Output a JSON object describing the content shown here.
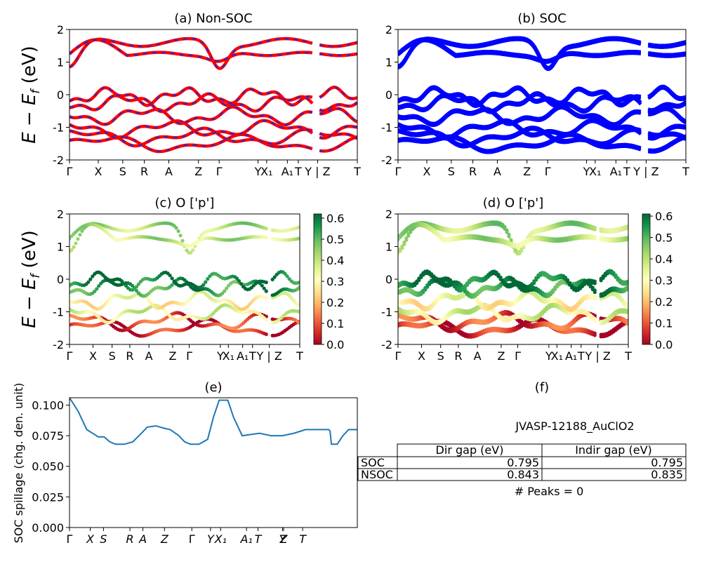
{
  "colors": {
    "nsoc_line": "#ff0000",
    "nsoc_dash": "#1f2bd6",
    "soc_line": "#0000ff",
    "spillage_line": "#1f77b4",
    "cmap": [
      "#a50026",
      "#d73027",
      "#f46d43",
      "#fdae61",
      "#fee08b",
      "#ffffbf",
      "#d9ef8b",
      "#a6d96a",
      "#66bd63",
      "#1a9850",
      "#006837"
    ]
  },
  "panels": {
    "a": {
      "title": "(a) Non-SOC"
    },
    "b": {
      "title": "(b) SOC"
    },
    "c": {
      "title": "(c)  O ['p']",
      "cbar_max": 0.62
    },
    "d": {
      "title": "(d) O ['p']",
      "cbar_max": 0.61
    },
    "e": {
      "title": "(e)"
    },
    "f": {
      "title": "(f)"
    }
  },
  "ylabels": {
    "energy": "E − E_f (eV)",
    "spillage": "SOC spillage (chg. den. unit)"
  },
  "band_ticks_top": [
    "Γ",
    "X",
    "S",
    "R",
    "A",
    "Z",
    "Γ",
    "Y",
    "X₁",
    "A₁",
    "T",
    "Y | Z",
    "T"
  ],
  "band_ticks_mid": [
    "Γ",
    "X",
    "S",
    "R",
    "A",
    "Z",
    "Γ",
    "Y",
    "X₁",
    "A₁",
    "T",
    "Y | Z",
    "T"
  ],
  "spill_ticks": [
    "Γ",
    "X",
    "S",
    "R",
    "A",
    "Z",
    "Γ",
    "Y",
    "X₁",
    "A₁",
    "T",
    "Y",
    "Z",
    "T"
  ],
  "table": {
    "material": "JVASP-12188_AuClO2",
    "headers": [
      "",
      "Dir gap (eV)",
      "Indir gap (eV)"
    ],
    "rows": [
      {
        "label": "SOC",
        "dir": "0.795",
        "indir": "0.795"
      },
      {
        "label": "NSOC",
        "dir": "0.843",
        "indir": "0.835"
      }
    ],
    "peaks": "# Peaks = 0"
  },
  "chart_data": [
    {
      "type": "line",
      "panel": "a",
      "title": "(a) Non-SOC",
      "ylabel": "E − E_f (eV)",
      "ylim": [
        -2,
        2
      ],
      "yticks": [
        -2,
        -1,
        0,
        1,
        2
      ],
      "xticks": [
        "Γ",
        "X",
        "S",
        "R",
        "A",
        "Z",
        "Γ",
        "Y",
        "X₁",
        "A₁",
        "T",
        "Y | Z",
        "T"
      ],
      "band_energies_at_gamma": [
        -1.5,
        -1.3,
        -1.05,
        -0.65,
        -0.25,
        -0.05,
        0.85,
        1.25
      ],
      "note_series": "red solid bands overlaid by blue dashed bands"
    },
    {
      "type": "line",
      "panel": "b",
      "title": "(b) SOC",
      "ylim": [
        -2,
        2
      ],
      "yticks": [
        -2,
        -1,
        0,
        1,
        2
      ],
      "xticks": [
        "Γ",
        "X",
        "S",
        "R",
        "A",
        "Z",
        "Γ",
        "Y",
        "X₁",
        "A₁",
        "T",
        "Y | Z",
        "T"
      ],
      "band_energies_at_gamma": [
        -1.5,
        -1.3,
        -1.05,
        -0.65,
        -0.25,
        -0.05,
        0.85,
        1.25
      ]
    },
    {
      "type": "scatter",
      "panel": "c",
      "title": "(c)  O ['p']",
      "ylabel": "E − E_f (eV)",
      "ylim": [
        -2,
        2
      ],
      "colorbar": {
        "min": 0.0,
        "max": 0.62,
        "ticks": [
          0.0,
          0.1,
          0.2,
          0.3,
          0.4,
          0.5,
          0.6
        ]
      }
    },
    {
      "type": "scatter",
      "panel": "d",
      "title": "(d) O ['p']",
      "ylim": [
        -2,
        2
      ],
      "colorbar": {
        "min": 0.0,
        "max": 0.61,
        "ticks": [
          0.0,
          0.1,
          0.2,
          0.3,
          0.4,
          0.5,
          0.6
        ]
      }
    },
    {
      "type": "line",
      "panel": "e",
      "title": "(e)",
      "ylabel": "SOC spillage (chg. den. unit)",
      "ylim": [
        0,
        0.106
      ],
      "yticks": [
        0.0,
        0.025,
        0.05,
        0.075,
        0.1
      ],
      "x": [
        0,
        0.03,
        0.06,
        0.1,
        0.12,
        0.14,
        0.16,
        0.19,
        0.22,
        0.25,
        0.27,
        0.3,
        0.33,
        0.35,
        0.38,
        0.4,
        0.42,
        0.45,
        0.48,
        0.5,
        0.52,
        0.55,
        0.57,
        0.6,
        0.63,
        0.66,
        0.7,
        0.74,
        0.78,
        0.82,
        0.86,
        0.9,
        0.905,
        0.91,
        0.93,
        0.95,
        0.97,
        1.0
      ],
      "y": [
        0.106,
        0.095,
        0.08,
        0.074,
        0.074,
        0.07,
        0.068,
        0.068,
        0.07,
        0.077,
        0.082,
        0.083,
        0.081,
        0.08,
        0.075,
        0.07,
        0.068,
        0.068,
        0.072,
        0.09,
        0.104,
        0.104,
        0.09,
        0.075,
        0.076,
        0.077,
        0.075,
        0.075,
        0.077,
        0.08,
        0.08,
        0.08,
        0.079,
        0.068,
        0.068,
        0.075,
        0.08,
        0.08
      ]
    }
  ]
}
